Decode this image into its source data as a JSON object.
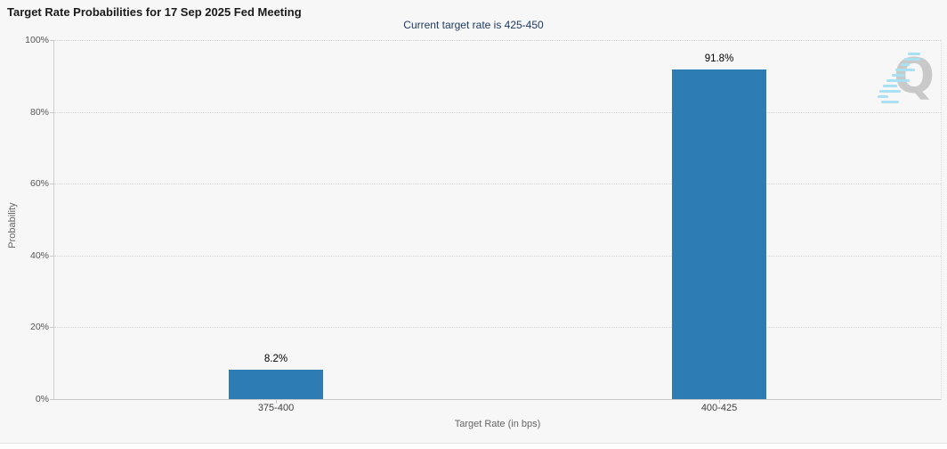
{
  "header": {
    "title": "Target Rate Probabilities for 17 Sep 2025 Fed Meeting",
    "subtitle": "Current target rate is 425-450"
  },
  "menu": {
    "icon": "hamburger-menu-icon"
  },
  "watermark": {
    "letter": "Q",
    "icon": "quikstrike-logo-watermark"
  },
  "colors": {
    "background": "#f7f7f7",
    "bar": "#2d7cb4",
    "title_text": "#1a1a1a",
    "subtitle_text": "#1f3a63",
    "axis_text": "#555555",
    "grid": "#d6d6d6",
    "watermark_gray": "#c9c9c9",
    "watermark_cyan": "#a9e1f3"
  },
  "chart_data": {
    "type": "bar",
    "title": "Target Rate Probabilities for 17 Sep 2025 Fed Meeting",
    "subtitle": "Current target rate is 425-450",
    "categories": [
      "375-400",
      "400-425"
    ],
    "values": [
      8.2,
      91.8
    ],
    "value_labels": [
      "8.2%",
      "91.8%"
    ],
    "xlabel": "Target Rate (in bps)",
    "ylabel": "Probability",
    "ylim": [
      0,
      100
    ],
    "yticks": [
      0,
      20,
      40,
      60,
      80,
      100
    ],
    "ytick_labels": [
      "0%",
      "20%",
      "40%",
      "60%",
      "80%",
      "100%"
    ],
    "grid": "horizontal-dotted",
    "legend_position": "none",
    "bar_color": "#2d7cb4"
  }
}
